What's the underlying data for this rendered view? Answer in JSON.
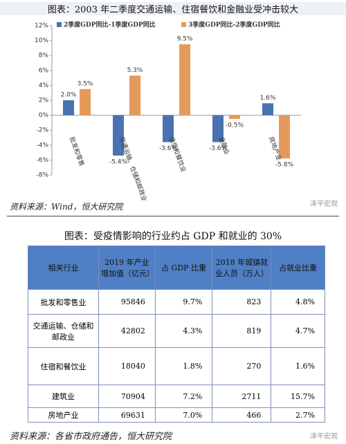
{
  "chart_data": {
    "type": "bar",
    "title": "图表：2003 年二季度交通运输、住宿餐饮和金融业受冲击较大",
    "categories": [
      "批发和零售",
      "交通运输、仓储和邮政业",
      "住宿和餐饮业",
      "金融业",
      "房地产业"
    ],
    "series": [
      {
        "name": "2季度GDP同比-1季度GDP同比",
        "color": "#4a72b0",
        "values": [
          2.0,
          -5.4,
          -3.6,
          -3.6,
          1.6
        ],
        "value_labels": [
          "2.0%",
          "-5.4%",
          "-3.6%",
          "-3.6%",
          "1.6%"
        ]
      },
      {
        "name": "3季度GDP同比-2季度GDP同比",
        "color": "#e59a5c",
        "values": [
          3.5,
          5.3,
          9.5,
          -0.5,
          -5.8
        ],
        "value_labels": [
          "3.5%",
          "5.3%",
          "9.5%",
          "-0.5%",
          "-5.8%"
        ]
      }
    ],
    "ylim": [
      -8,
      12
    ],
    "yticks": [
      {
        "value": 12,
        "label": "12%"
      },
      {
        "value": 10,
        "label": "10%"
      },
      {
        "value": 8,
        "label": "8%"
      },
      {
        "value": 6,
        "label": "6%"
      },
      {
        "value": 4,
        "label": "4%"
      },
      {
        "value": 2,
        "label": "2%"
      },
      {
        "value": 0,
        "label": "0%"
      },
      {
        "value": -2,
        "label": "-2%"
      },
      {
        "value": -4,
        "label": "-4%"
      },
      {
        "value": -6,
        "label": "-6%"
      },
      {
        "value": -8,
        "label": "-8%"
      }
    ],
    "source": "资料来源：Wind，恒大研究院",
    "watermark": "泽平宏观"
  },
  "table": {
    "title": "图表：受疫情影响的行业约占 GDP 和就业的 30%",
    "header": [
      "相关行业",
      "2019 年产业增加值（亿元）",
      "占 GDP 比重",
      "2018 年城镇就业人员（万人）",
      "占就业比重"
    ],
    "rows": [
      [
        "批发和零售业",
        "95846",
        "9.7%",
        "823",
        "4.8%"
      ],
      [
        "交通运输、仓储和邮政业",
        "42802",
        "4.3%",
        "819",
        "4.7%"
      ],
      [
        "住宿和餐饮业",
        "18040",
        "1.8%",
        "270",
        "1.6%"
      ],
      [
        "建筑业",
        "70904",
        "7.2%",
        "2711",
        "15.7%"
      ],
      [
        "房地产业",
        "69631",
        "7.0%",
        "466",
        "2.7%"
      ]
    ],
    "source": "资料来源：各省市政府通告，恒大研究院",
    "watermark": "泽平宏观"
  }
}
